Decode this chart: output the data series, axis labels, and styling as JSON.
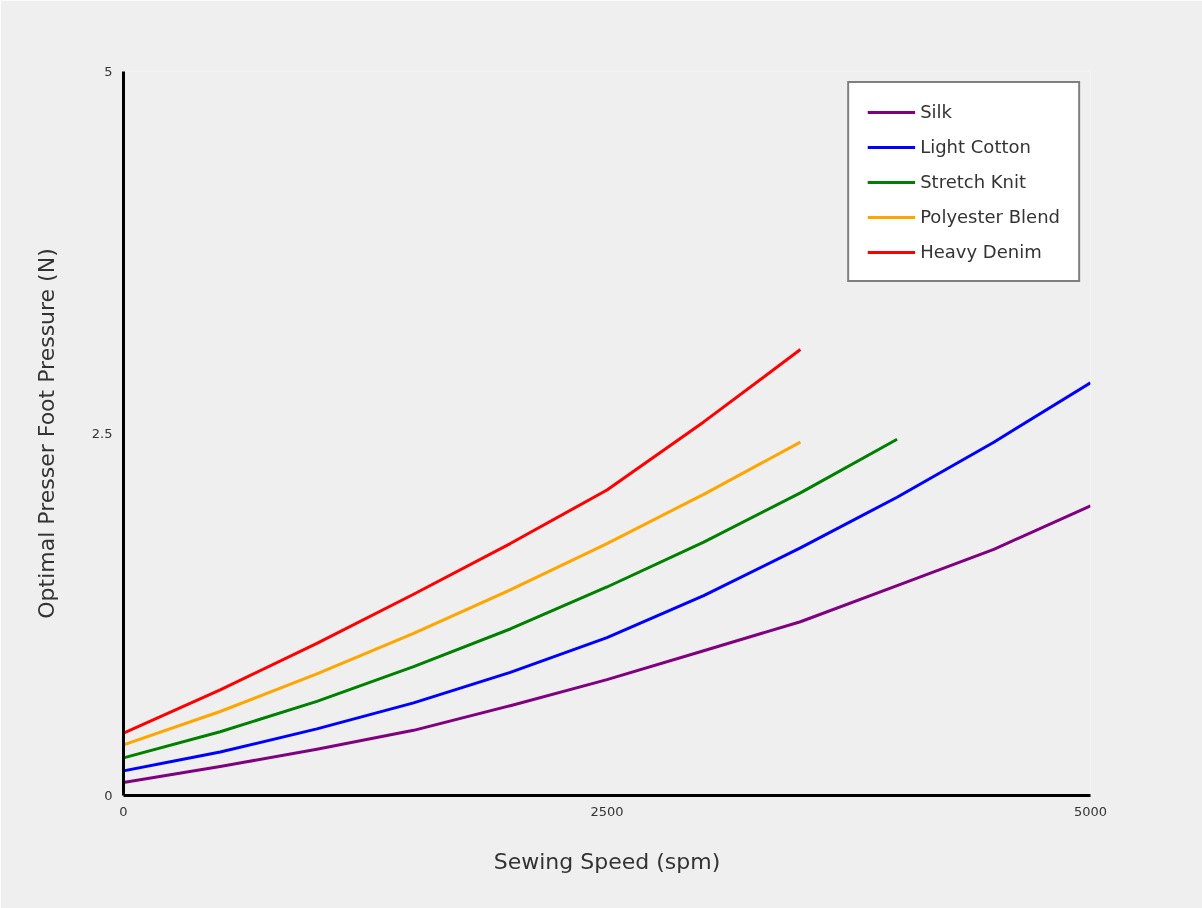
{
  "chart_data": {
    "type": "line",
    "xlabel": "Sewing Speed (spm)",
    "ylabel": "Optimal Presser Foot Pressure (N)",
    "x": [
      0,
      500,
      1000,
      1500,
      2000,
      2500,
      3000,
      3500,
      4000,
      4500,
      5000
    ],
    "series": [
      {
        "name": "Silk",
        "color": "#800080",
        "values": [
          0.09,
          0.2,
          0.32,
          0.45,
          0.62,
          0.8,
          1.0,
          1.2,
          1.45,
          1.7,
          2.0
        ]
      },
      {
        "name": "Light Cotton",
        "color": "#0000ff",
        "values": [
          0.17,
          0.3,
          0.46,
          0.64,
          0.85,
          1.09,
          1.38,
          1.71,
          2.06,
          2.44,
          2.85
        ]
      },
      {
        "name": "Stretch Knit",
        "color": "#008000",
        "values": [
          0.26,
          0.44,
          0.65,
          0.89,
          1.15,
          1.44,
          1.75,
          2.09,
          2.46,
          null,
          null
        ]
      },
      {
        "name": "Polyester Blend",
        "color": "#ffa500",
        "values": [
          0.35,
          0.58,
          0.84,
          1.12,
          1.42,
          1.74,
          2.08,
          2.44,
          null,
          null,
          null
        ]
      },
      {
        "name": "Heavy Denim",
        "color": "#ff0000",
        "values": [
          0.43,
          0.73,
          1.05,
          1.39,
          1.74,
          2.11,
          2.58,
          3.08,
          null,
          null,
          null
        ]
      }
    ],
    "xlim": [
      0,
      5000
    ],
    "ylim": [
      0,
      5
    ],
    "xticks": [
      0,
      2500,
      5000
    ],
    "yticks": [
      0,
      2.5,
      5
    ],
    "grid": false,
    "legend": "top right",
    "marker": "none",
    "line_style": "solid"
  }
}
